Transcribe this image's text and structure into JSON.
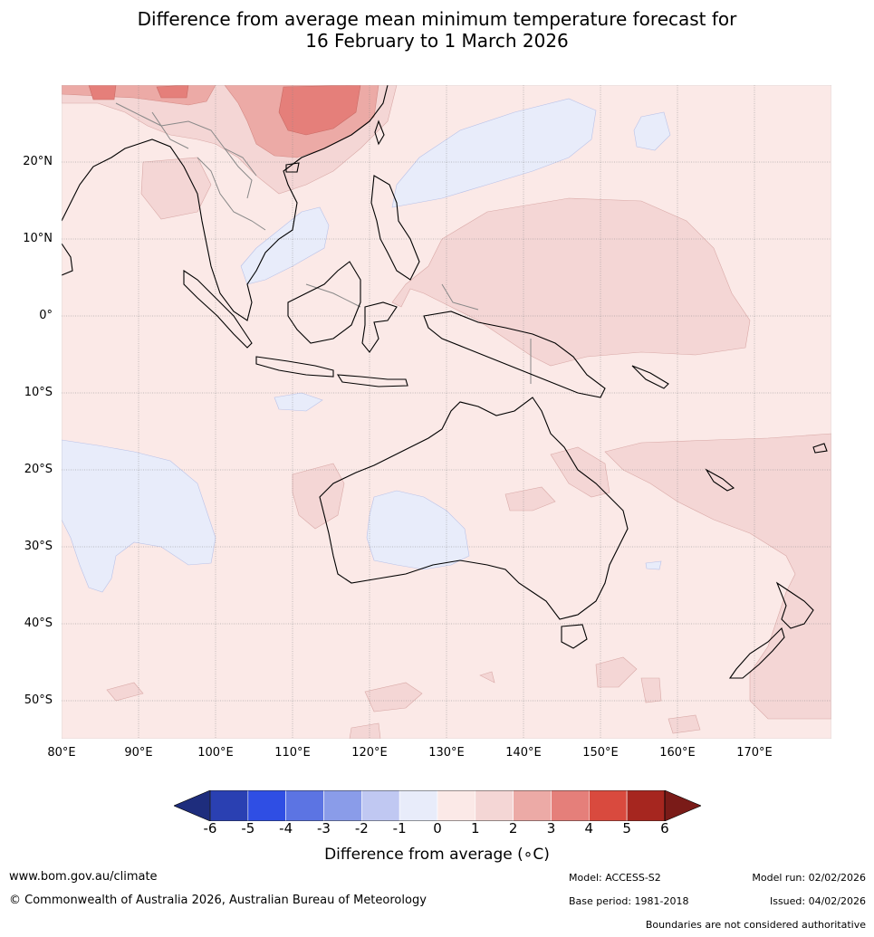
{
  "title": {
    "line1": "Difference from average mean minimum temperature forecast for",
    "line2": "16 February to 1 March 2026"
  },
  "map": {
    "lat_labels": [
      "20°N",
      "10°N",
      "0°",
      "10°S",
      "20°S",
      "30°S",
      "40°S",
      "50°S"
    ],
    "lon_labels": [
      "80°E",
      "90°E",
      "100°E",
      "110°E",
      "120°E",
      "130°E",
      "140°E",
      "150°E",
      "160°E",
      "170°E"
    ],
    "colors": {
      "anom_0_1": "#fbe9e7",
      "anom_1_2": "#f4d6d5",
      "anom_2_3": "#ecaaa6",
      "anom_3_4": "#e57f7a",
      "anom_neg_0_1": "#e8ecfa",
      "coast": "#000000",
      "border": "#888888",
      "grid": "#888888"
    }
  },
  "colorbar": {
    "ticks": [
      "-6",
      "-5",
      "-4",
      "-3",
      "-2",
      "-1",
      "0",
      "1",
      "2",
      "3",
      "4",
      "5",
      "6"
    ],
    "colors": [
      "#1e2d7d",
      "#2a40b2",
      "#2f4ee4",
      "#5c74e3",
      "#8a9ce9",
      "#c0c8f2",
      "#e8ecfa",
      "#fbe9e7",
      "#f4d6d5",
      "#ecaaa6",
      "#e57f7a",
      "#d94a3e",
      "#a6261f",
      "#7a1b18"
    ],
    "label": "Difference from average (∘C)"
  },
  "footer": {
    "website": "www.bom.gov.au/climate",
    "copyright": "© Commonwealth of Australia 2026, Australian Bureau of Meteorology",
    "model": "Model: ACCESS-S2",
    "base_period": "Base period: 1981-2018",
    "model_run": "Model run: 02/02/2026",
    "issued": "Issued: 04/02/2026",
    "disclaimer": "Boundaries are not considered authoritative"
  }
}
